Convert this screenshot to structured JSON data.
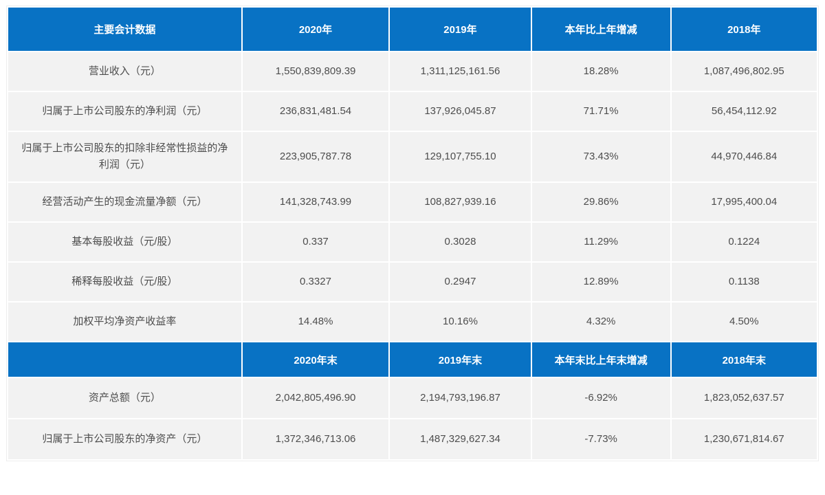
{
  "colors": {
    "header_bg": "#0872c4",
    "header_text": "#ffffff",
    "row_bg": "#f2f2f2",
    "body_text": "#4d4d4d",
    "page_bg": "#ffffff"
  },
  "sections": [
    {
      "headers": [
        "主要会计数据",
        "2020年",
        "2019年",
        "本年比上年增减",
        "2018年"
      ],
      "rows": [
        {
          "label": "营业收入（元）",
          "values": [
            "1,550,839,809.39",
            "1,311,125,161.56",
            "18.28%",
            "1,087,496,802.95"
          ]
        },
        {
          "label": "归属于上市公司股东的净利润（元）",
          "values": [
            "236,831,481.54",
            "137,926,045.87",
            "71.71%",
            "56,454,112.92"
          ]
        },
        {
          "label": "归属于上市公司股东的扣除非经常性损益的净利润（元）",
          "values": [
            "223,905,787.78",
            "129,107,755.10",
            "73.43%",
            "44,970,446.84"
          ]
        },
        {
          "label": "经营活动产生的现金流量净额（元）",
          "values": [
            "141,328,743.99",
            "108,827,939.16",
            "29.86%",
            "17,995,400.04"
          ]
        },
        {
          "label": "基本每股收益（元/股）",
          "values": [
            "0.337",
            "0.3028",
            "11.29%",
            "0.1224"
          ]
        },
        {
          "label": "稀释每股收益（元/股）",
          "values": [
            "0.3327",
            "0.2947",
            "12.89%",
            "0.1138"
          ]
        },
        {
          "label": "加权平均净资产收益率",
          "values": [
            "14.48%",
            "10.16%",
            "4.32%",
            "4.50%"
          ]
        }
      ]
    },
    {
      "headers": [
        "",
        "2020年末",
        "2019年末",
        "本年末比上年末增减",
        "2018年末"
      ],
      "rows": [
        {
          "label": "资产总额（元）",
          "values": [
            "2,042,805,496.90",
            "2,194,793,196.87",
            "-6.92%",
            "1,823,052,637.57"
          ]
        },
        {
          "label": "归属于上市公司股东的净资产（元）",
          "values": [
            "1,372,346,713.06",
            "1,487,329,627.34",
            "-7.73%",
            "1,230,671,814.67"
          ]
        }
      ]
    }
  ]
}
